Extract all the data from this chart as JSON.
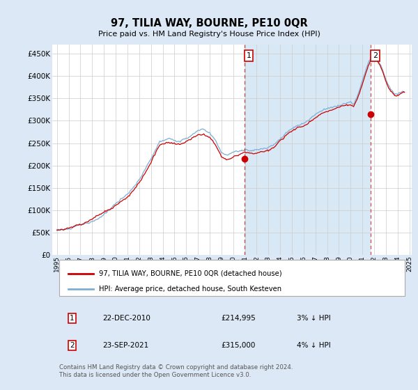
{
  "title": "97, TILIA WAY, BOURNE, PE10 0QR",
  "subtitle": "Price paid vs. HM Land Registry's House Price Index (HPI)",
  "ylabel_ticks": [
    "£0",
    "£50K",
    "£100K",
    "£150K",
    "£200K",
    "£250K",
    "£300K",
    "£350K",
    "£400K",
    "£450K"
  ],
  "ytick_values": [
    0,
    50000,
    100000,
    150000,
    200000,
    250000,
    300000,
    350000,
    400000,
    450000
  ],
  "ylim": [
    0,
    470000
  ],
  "xlim_start": 1994.6,
  "xlim_end": 2025.2,
  "xticks": [
    1995,
    1996,
    1997,
    1998,
    1999,
    2000,
    2001,
    2002,
    2003,
    2004,
    2005,
    2006,
    2007,
    2008,
    2009,
    2010,
    2011,
    2012,
    2013,
    2014,
    2015,
    2016,
    2017,
    2018,
    2019,
    2020,
    2021,
    2022,
    2023,
    2024,
    2025
  ],
  "hpi_color": "#7bafd4",
  "price_color": "#cc0000",
  "marker_color": "#cc0000",
  "vline_color": "#cc0000",
  "background_color": "#dce8f5",
  "plot_bg_color": "#ffffff",
  "shade_color": "#d8e8f5",
  "legend_border_color": "#aaaaaa",
  "sale1_x": 2010.97,
  "sale1_y": 214995,
  "sale2_x": 2021.73,
  "sale2_y": 315000,
  "legend_label1": "97, TILIA WAY, BOURNE, PE10 0QR (detached house)",
  "legend_label2": "HPI: Average price, detached house, South Kesteven",
  "table_data": [
    [
      "1",
      "22-DEC-2010",
      "£214,995",
      "3% ↓ HPI"
    ],
    [
      "2",
      "23-SEP-2021",
      "£315,000",
      "4% ↓ HPI"
    ]
  ],
  "footer": "Contains HM Land Registry data © Crown copyright and database right 2024.\nThis data is licensed under the Open Government Licence v3.0.",
  "vline1_x": 2010.97,
  "vline2_x": 2021.73
}
